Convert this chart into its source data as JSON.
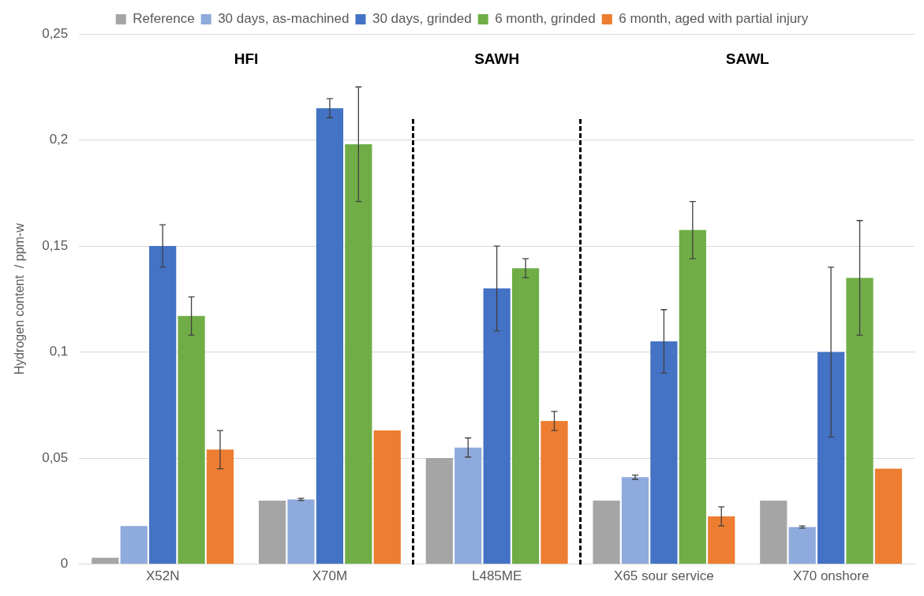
{
  "chart_data": {
    "type": "bar",
    "categories": [
      "X52N",
      "X70M",
      "L485ME",
      "X65 sour service",
      "X70 onshore"
    ],
    "ylabel": "Hydrogen content  / ppm-w",
    "series": [
      {
        "name": "Reference",
        "color": "#a5a5a5",
        "values": [
          0.003,
          0.03,
          0.05,
          0.03,
          0.03
        ]
      },
      {
        "name": "30 days, as-machined",
        "color": "#8faadc",
        "values": [
          0.018,
          0.0305,
          0.055,
          0.041,
          0.0175
        ],
        "errors": [
          null,
          0.0005,
          0.0045,
          0.001,
          0.0005
        ]
      },
      {
        "name": "30 days, grinded",
        "color": "#4472c4",
        "values": [
          0.15,
          0.215,
          0.13,
          0.105,
          0.1
        ],
        "errors": [
          0.01,
          0.0045,
          0.02,
          0.015,
          0.04
        ]
      },
      {
        "name": "6 month, grinded",
        "color": "#70ad47",
        "values": [
          0.117,
          0.198,
          0.1395,
          0.1575,
          0.135
        ],
        "errors": [
          0.009,
          0.027,
          0.0045,
          0.0135,
          0.027
        ]
      },
      {
        "name": "6 month, aged with partial injury",
        "color": "#ed7d31",
        "values": [
          0.054,
          0.063,
          0.0675,
          0.0225,
          0.045
        ],
        "errors": [
          0.009,
          null,
          0.0045,
          0.0045,
          null
        ]
      }
    ],
    "ylim": [
      0,
      0.25
    ],
    "yticks": [
      {
        "value": 0,
        "label": "0"
      },
      {
        "value": 0.05,
        "label": "0,05"
      },
      {
        "value": 0.1,
        "label": "0,1"
      },
      {
        "value": 0.15,
        "label": "0,15"
      },
      {
        "value": 0.2,
        "label": "0,2"
      },
      {
        "value": 0.25,
        "label": "0,25"
      }
    ],
    "annotations": [
      "HFI",
      "SAWH",
      "SAWL"
    ],
    "grid": "y",
    "legend": "top"
  }
}
